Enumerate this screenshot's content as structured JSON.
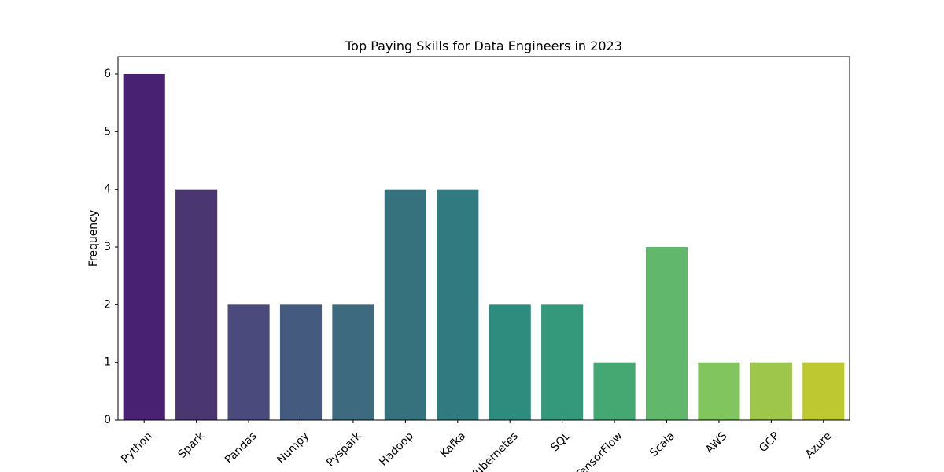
{
  "chart_data": {
    "type": "bar",
    "title": "Top Paying Skills for Data Engineers in 2023",
    "xlabel": "",
    "ylabel": "Frequency",
    "categories": [
      "Python",
      "Spark",
      "Pandas",
      "Numpy",
      "Pyspark",
      "Hadoop",
      "Kafka",
      "Kubernetes",
      "SQL",
      "TensorFlow",
      "Scala",
      "AWS",
      "GCP",
      "Azure"
    ],
    "values": [
      6,
      4,
      2,
      2,
      2,
      4,
      4,
      2,
      2,
      1,
      3,
      1,
      1,
      1
    ],
    "colors": [
      "#482173",
      "#4a3771",
      "#4a4a7c",
      "#445a7e",
      "#3e6a80",
      "#35727d",
      "#317b80",
      "#2e8c7e",
      "#34997a",
      "#45a873",
      "#61b86c",
      "#80c55d",
      "#9ec64b",
      "#bec830"
    ],
    "y_ticks": [
      0,
      1,
      2,
      3,
      4,
      5,
      6
    ],
    "ylim": [
      0,
      6.3
    ],
    "x_tick_rotation": 45,
    "grid": false
  }
}
